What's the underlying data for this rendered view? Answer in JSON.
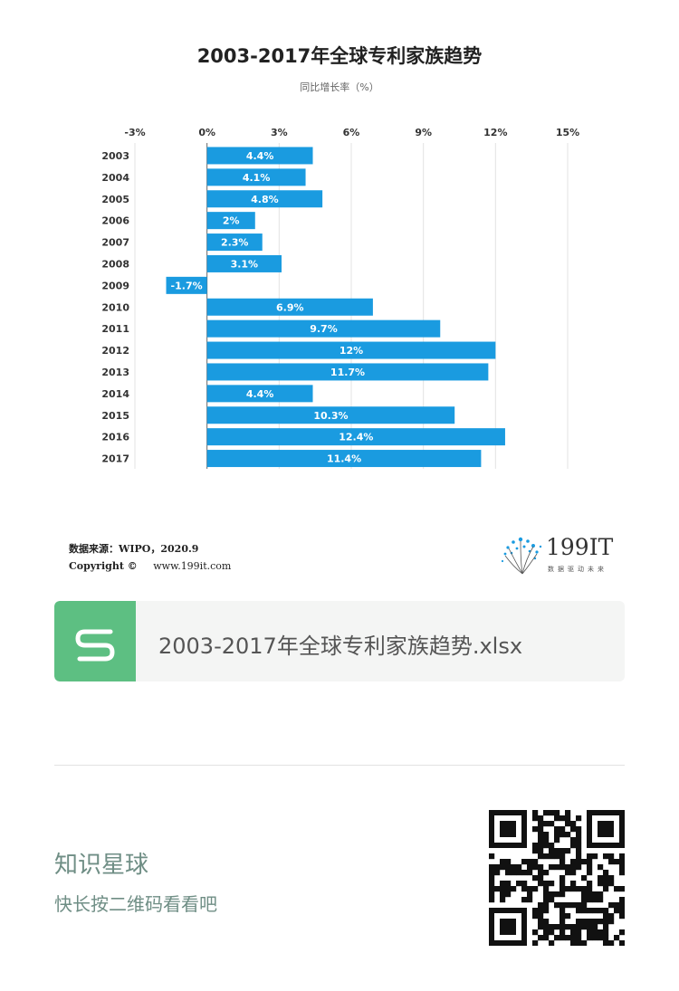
{
  "chart_data": {
    "type": "bar",
    "orientation": "horizontal",
    "title": "2003-2017年全球专利家族趋势",
    "subtitle": "同比增长率（%）",
    "categories": [
      "2003",
      "2004",
      "2005",
      "2006",
      "2007",
      "2008",
      "2009",
      "2010",
      "2011",
      "2012",
      "2013",
      "2014",
      "2015",
      "2016",
      "2017"
    ],
    "values": [
      4.4,
      4.1,
      4.8,
      2,
      2.3,
      3.1,
      -1.7,
      6.9,
      9.7,
      12,
      11.7,
      4.4,
      10.3,
      12.4,
      11.4
    ],
    "data_labels": [
      "4.4%",
      "4.1%",
      "4.8%",
      "2%",
      "2.3%",
      "3.1%",
      "-1.7%",
      "6.9%",
      "9.7%",
      "12%",
      "11.7%",
      "4.4%",
      "10.3%",
      "12.4%",
      "11.4%"
    ],
    "x_ticks": [
      -3,
      0,
      3,
      6,
      9,
      12,
      15
    ],
    "x_tick_labels": [
      "-3%",
      "0%",
      "3%",
      "6%",
      "9%",
      "12%",
      "15%"
    ],
    "xlim": [
      -3,
      15
    ],
    "xlabel": "",
    "ylabel": "",
    "grid": true,
    "bar_color": "#1a9be0"
  },
  "source": {
    "line": "数据来源：WIPO，2020.9",
    "copyright_label": "Copyright ©",
    "website": "www.199it.com"
  },
  "brand": {
    "name": "199IT",
    "slogan": "数据驱动未来"
  },
  "attachment": {
    "file_name": "2003-2017年全球专利家族趋势.xlsx",
    "icon": "spreadsheet-s-icon",
    "icon_color": "#5dbf82"
  },
  "footer": {
    "title": "知识星球",
    "subtitle": "快长按二维码看看吧",
    "qr_icon": "qr-code-icon"
  }
}
